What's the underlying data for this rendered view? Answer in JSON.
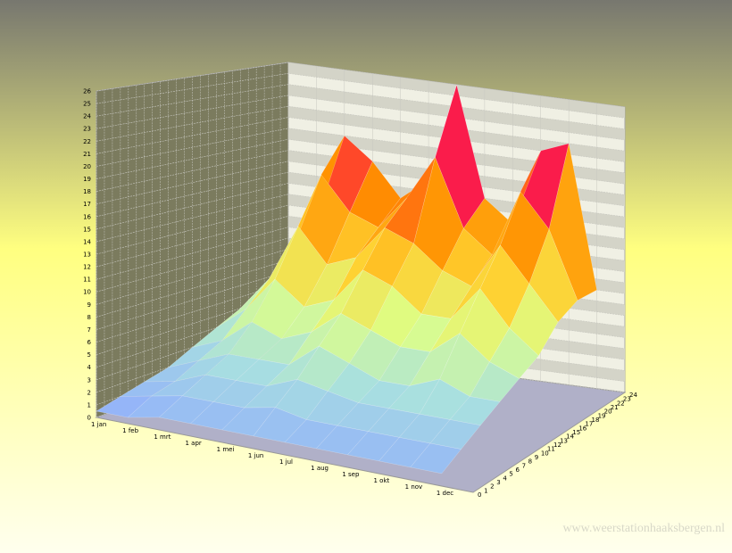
{
  "chart_data": {
    "type": "surface3d",
    "categories": [
      "1 jan",
      "1 feb",
      "1 mrt",
      "1 apr",
      "1 mei",
      "1 jun",
      "1 jul",
      "1 aug",
      "1 sep",
      "1 okt",
      "1 nov",
      "1 dec"
    ],
    "hours": [
      0,
      3,
      6,
      9,
      12,
      15,
      18,
      21,
      24
    ],
    "values": [
      [
        0.5,
        0.5,
        1,
        1,
        1,
        1,
        1,
        1,
        1,
        1,
        1,
        1
      ],
      [
        1,
        1.5,
        2,
        2,
        2,
        2.5,
        2,
        2,
        2,
        2,
        2,
        2
      ],
      [
        1.5,
        2,
        3,
        3,
        3,
        4,
        3.5,
        3,
        3,
        3,
        3,
        3
      ],
      [
        2,
        3,
        4,
        4,
        4,
        6,
        5,
        4,
        4,
        5,
        4,
        4
      ],
      [
        3,
        4,
        6,
        5,
        6,
        8,
        7,
        6,
        6,
        8,
        6,
        5
      ],
      [
        4,
        6,
        9,
        7,
        8,
        11,
        10,
        8,
        8,
        11,
        8,
        6
      ],
      [
        5,
        8,
        13,
        10,
        11,
        14,
        13,
        11,
        10,
        14,
        11,
        8
      ],
      [
        6,
        10,
        17,
        14,
        13,
        16,
        20,
        14,
        12,
        18,
        15,
        9
      ],
      [
        7,
        12,
        20,
        18,
        15,
        17,
        26,
        16,
        14,
        21,
        22,
        9
      ]
    ],
    "zlim": [
      0,
      26
    ],
    "zticks": [
      0,
      1,
      2,
      3,
      4,
      5,
      6,
      7,
      8,
      9,
      10,
      11,
      12,
      13,
      14,
      15,
      16,
      17,
      18,
      19,
      20,
      21,
      22,
      23,
      24,
      25,
      26
    ],
    "hourlim": [
      0,
      24
    ],
    "hourticks": [
      0,
      1,
      2,
      3,
      4,
      5,
      6,
      7,
      8,
      9,
      10,
      11,
      12,
      13,
      14,
      15,
      16,
      17,
      18,
      19,
      20,
      21,
      22,
      23,
      24
    ],
    "colorscale": [
      "#8fa8ff",
      "#a8e0e0",
      "#ddff88",
      "#ffd030",
      "#ff9000",
      "#ff2040",
      "#d000a0",
      "#9060ff"
    ],
    "grid": true
  },
  "watermark": "www.weerstationhaaksbergen.nl"
}
